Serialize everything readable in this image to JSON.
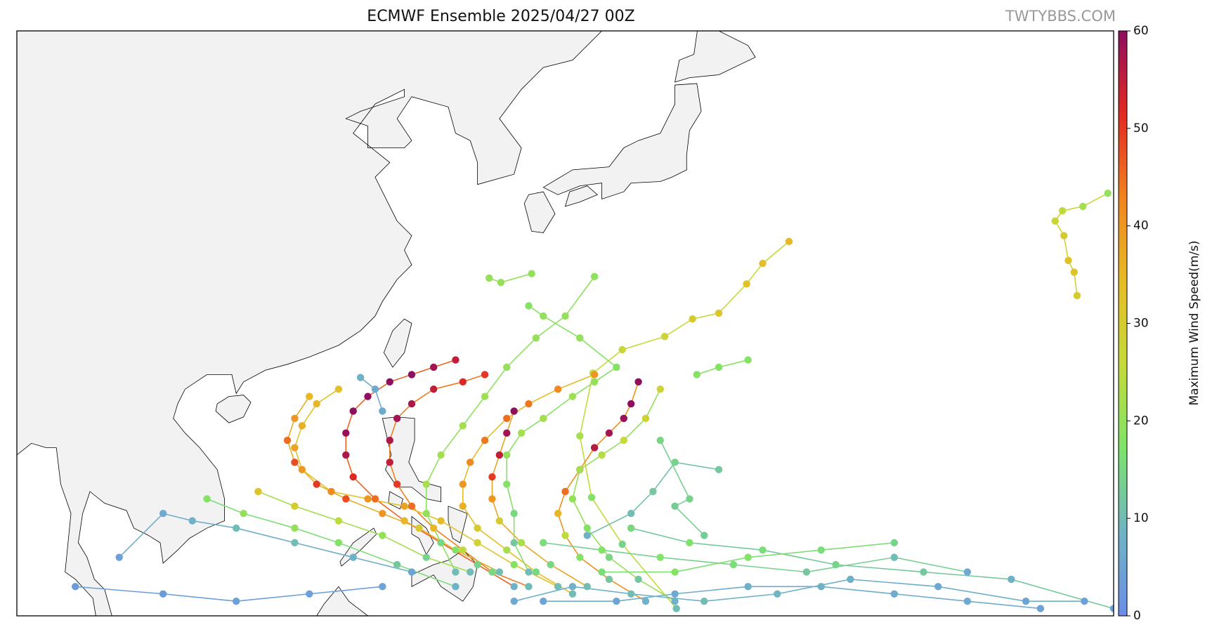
{
  "chart_data": {
    "type": "track-map",
    "title": "ECMWF Ensemble 2025/04/27 00Z",
    "watermark": "TWTYBBS.COM",
    "xlim": [
      95,
      170
    ],
    "ylim": [
      5,
      45
    ],
    "colorbar": {
      "label": "Maximum Wind Speed(m/s)",
      "lim": [
        0,
        60
      ],
      "ticks": [
        0,
        10,
        20,
        30,
        40,
        50,
        60
      ],
      "colors": [
        "#6a8ee8",
        "#6fb4c4",
        "#7de36b",
        "#c4da3a",
        "#e6bc26",
        "#f08420",
        "#e22a22",
        "#8e0f5e"
      ]
    },
    "tracks": [
      {
        "lon": [
          167.5,
          167.3,
          166.9,
          166.6,
          166.0,
          166.5,
          167.9,
          169.6
        ],
        "lat": [
          26.9,
          28.5,
          29.3,
          31.0,
          32.0,
          32.7,
          33.0,
          33.9
        ],
        "wind": [
          30,
          32,
          33,
          30,
          28,
          25,
          22,
          20
        ]
      },
      {
        "lon": [
          140.1,
          136.4,
          134.3,
          133.5,
          134.4,
          136.4,
          139.3,
          141.2,
          143.0,
          144.9,
          146.0,
          147.8
        ],
        "lat": [
          5.5,
          9.9,
          13.1,
          17.3,
          21.6,
          23.2,
          24.1,
          25.3,
          25.7,
          27.7,
          29.1,
          30.6
        ],
        "wind": [
          10,
          14,
          18,
          22,
          25,
          27,
          28,
          30,
          32,
          33,
          34,
          35
        ]
      },
      {
        "lon": [
          138,
          135.5,
          133.5,
          132.5,
          132,
          132.5,
          133.5,
          134.5,
          135.5,
          136.5,
          137,
          137.5
        ],
        "lat": [
          6,
          7.5,
          9,
          10.5,
          12,
          13.5,
          15,
          16.5,
          17.5,
          18.5,
          19.5,
          21
        ],
        "wind": [
          8,
          12,
          18,
          25,
          35,
          45,
          52,
          56,
          58,
          59,
          60,
          60
        ]
      },
      {
        "lon": [
          134,
          131.5,
          129.5,
          128,
          127.5,
          127.5,
          128,
          128.5,
          129
        ],
        "lat": [
          7,
          8.5,
          10,
          11.5,
          13,
          14.5,
          16,
          17.5,
          19
        ],
        "wind": [
          10,
          15,
          22,
          30,
          40,
          50,
          55,
          58,
          60
        ]
      },
      {
        "lon": [
          133,
          130.5,
          128.5,
          126.5,
          125.5,
          125.5,
          126,
          127,
          128.5,
          130,
          132,
          134.5
        ],
        "lat": [
          6.5,
          8,
          9.5,
          11,
          12.5,
          14,
          15.5,
          17,
          18.5,
          19.5,
          20.5,
          21.5
        ],
        "wind": [
          10,
          15,
          22,
          30,
          36,
          40,
          42,
          44,
          45,
          44,
          42,
          40
        ]
      },
      {
        "lon": [
          130,
          127.5,
          125.5,
          123.5,
          122,
          121,
          120.5,
          120.5,
          121,
          122,
          123.5,
          125.5,
          127
        ],
        "lat": [
          7,
          8,
          9.5,
          11,
          12.5,
          14,
          15.5,
          17,
          18.5,
          19.5,
          20.5,
          21,
          21.5
        ],
        "wind": [
          10,
          15,
          25,
          35,
          45,
          50,
          55,
          57,
          58,
          57,
          55,
          52,
          50
        ]
      },
      {
        "lon": [
          129,
          126.5,
          124,
          121.5,
          119.5,
          118,
          117.5,
          117.5,
          118,
          119,
          120.5,
          122,
          123.5,
          125
        ],
        "lat": [
          7,
          8.5,
          10,
          11.5,
          13,
          14.5,
          16,
          17.5,
          19,
          20,
          21,
          21.5,
          22,
          22.5
        ],
        "wind": [
          8,
          14,
          22,
          35,
          45,
          52,
          57,
          59,
          60,
          60,
          60,
          60,
          58,
          55
        ]
      },
      {
        "lon": [
          128,
          125,
          122.5,
          120,
          117.5,
          115.5,
          114,
          113.5,
          114,
          115
        ],
        "lat": [
          8,
          9.5,
          11,
          12,
          13,
          14,
          15.5,
          17,
          18.5,
          20
        ],
        "wind": [
          10,
          18,
          30,
          40,
          48,
          50,
          48,
          45,
          40,
          35
        ]
      },
      {
        "lon": [
          132,
          129,
          126.5,
          124,
          121.5,
          119,
          116.5,
          114.5,
          114,
          114.5,
          115.5,
          117
        ],
        "lat": [
          7,
          8.5,
          10,
          11.5,
          12.5,
          13,
          13.5,
          15,
          16.5,
          18,
          19.5,
          20.5
        ],
        "wind": [
          10,
          18,
          28,
          34,
          38,
          40,
          42,
          40,
          38,
          36,
          35,
          33
        ]
      },
      {
        "lon": [
          126,
          123,
          120,
          117,
          114,
          111.5
        ],
        "lat": [
          8,
          9,
          10.5,
          11.5,
          12.5,
          13.5
        ],
        "wind": [
          10,
          14,
          20,
          25,
          30,
          32
        ]
      },
      {
        "lon": [
          125,
          121,
          117,
          114,
          110.5,
          108
        ],
        "lat": [
          7,
          8.5,
          10,
          11,
          12,
          13
        ],
        "wind": [
          8,
          12,
          18,
          20,
          20,
          18
        ]
      },
      {
        "lon": [
          122,
          118,
          114,
          110,
          107,
          105,
          102
        ],
        "lat": [
          8,
          9,
          10,
          11,
          11.5,
          12,
          9
        ],
        "wind": [
          5,
          8,
          10,
          10,
          8,
          6,
          4
        ]
      },
      {
        "lon": [
          130,
          129,
          129,
          128.5,
          128.5,
          129.5,
          131,
          133,
          134.5,
          136,
          133.5,
          131,
          130
        ],
        "lat": [
          8,
          10,
          12,
          14,
          16,
          17.5,
          18.5,
          20,
          21,
          22,
          24,
          25.5,
          26.2
        ],
        "wind": [
          10,
          12,
          15,
          18,
          20,
          22,
          22,
          21,
          20,
          18,
          20,
          20,
          18
        ]
      },
      {
        "lon": [
          140,
          137.5,
          135.5,
          134,
          133,
          133.5,
          135,
          136.5,
          138,
          139
        ],
        "lat": [
          6,
          7.5,
          9,
          11,
          13,
          15,
          16,
          17,
          18.5,
          20.5
        ],
        "wind": [
          8,
          12,
          15,
          18,
          20,
          22,
          24,
          26,
          28,
          28
        ]
      },
      {
        "lon": [
          141.5,
          143,
          145
        ],
        "lat": [
          21.5,
          22,
          22.5
        ],
        "wind": [
          18,
          18,
          18
        ]
      },
      {
        "lon": [
          127.3,
          128.1,
          130.2
        ],
        "lat": [
          28.1,
          27.8,
          28.4
        ],
        "wind": [
          20,
          20,
          20
        ]
      },
      {
        "lon": [
          125,
          124,
          123,
          123,
          124,
          125.5,
          127,
          128.5,
          130.5,
          132.5,
          134.5
        ],
        "lat": [
          8,
          10,
          12,
          14,
          16,
          18,
          20,
          22,
          24,
          25.5,
          28.2
        ],
        "wind": [
          10,
          15,
          20,
          22,
          22,
          22,
          21,
          20,
          20,
          20,
          19
        ]
      },
      {
        "lon": [
          165,
          160,
          155,
          150,
          145,
          140,
          136,
          131
        ],
        "lat": [
          5.5,
          6,
          6.5,
          7,
          7,
          6.5,
          6,
          6
        ],
        "wind": [
          5,
          6,
          7,
          8,
          8,
          6,
          5,
          5
        ]
      },
      {
        "lon": [
          170,
          163,
          157,
          151,
          146,
          141,
          137
        ],
        "lat": [
          5.5,
          7.5,
          8,
          8.5,
          9.5,
          10,
          11
        ],
        "wind": [
          4,
          8,
          12,
          14,
          16,
          17,
          15
        ]
      },
      {
        "lon": [
          160,
          155,
          149,
          144,
          139,
          135,
          131
        ],
        "lat": [
          8,
          9,
          8,
          8.5,
          9,
          9.5,
          10
        ],
        "wind": [
          6,
          10,
          12,
          16,
          18,
          18,
          16
        ]
      },
      {
        "lon": [
          143,
          140,
          138.5,
          137,
          134
        ],
        "lat": [
          15,
          15.5,
          13.5,
          12,
          10.5
        ],
        "wind": [
          12,
          14,
          12,
          10,
          8
        ]
      },
      {
        "lon": [
          139,
          141,
          140,
          142
        ],
        "lat": [
          17,
          13,
          12.5,
          10.5
        ],
        "wind": [
          15,
          14,
          13,
          13
        ]
      },
      {
        "lon": [
          120,
          115,
          110,
          105,
          99
        ],
        "lat": [
          7,
          6.5,
          6,
          6.5,
          7
        ],
        "wind": [
          5,
          4,
          4,
          3,
          3
        ]
      },
      {
        "lon": [
          118.5,
          119.5,
          120
        ],
        "lat": [
          21.3,
          20.5,
          19
        ],
        "wind": [
          8,
          6,
          6
        ]
      },
      {
        "lon": [
          168,
          164,
          158,
          152,
          147,
          142,
          137,
          133,
          129
        ],
        "lat": [
          6,
          6,
          7,
          7.5,
          6.5,
          6,
          6.5,
          7,
          6
        ],
        "wind": [
          4,
          5,
          6,
          8,
          9,
          10,
          10,
          8,
          6
        ]
      },
      {
        "lon": [
          155,
          150,
          145,
          140,
          135
        ],
        "lat": [
          10,
          9.5,
          9,
          8,
          8
        ],
        "wind": [
          14,
          16,
          18,
          18,
          16
        ]
      }
    ]
  }
}
